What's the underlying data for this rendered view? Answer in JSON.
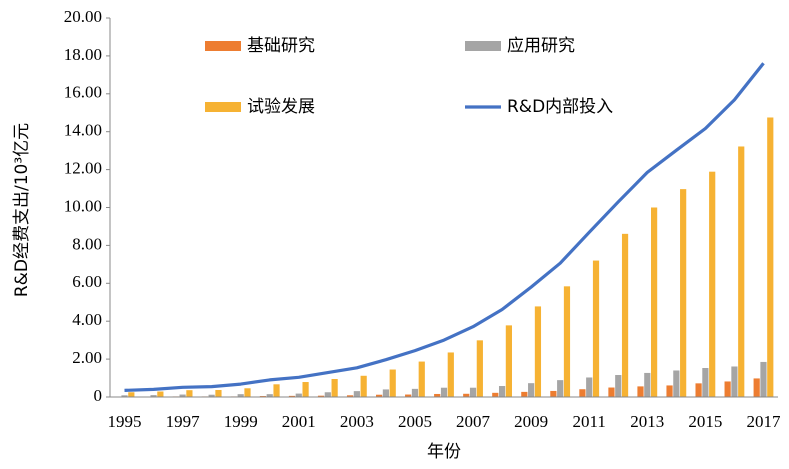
{
  "chart_data": {
    "type": "bar_line",
    "x_label": "年份",
    "y_label": "R&D经费支出/10³亿元",
    "categories": [
      "1995",
      null,
      "1997",
      null,
      "1999",
      null,
      "2001",
      null,
      "2003",
      null,
      "2005",
      null,
      "2007",
      null,
      "2009",
      null,
      "2011",
      null,
      "2013",
      null,
      "2015",
      null,
      "2017"
    ],
    "series": [
      {
        "name": "基础研究",
        "type": "bar",
        "color": "#ed7d31",
        "values": [
          0.02,
          0.02,
          0.03,
          0.03,
          0.03,
          0.05,
          0.06,
          0.07,
          0.09,
          0.12,
          0.13,
          0.16,
          0.17,
          0.22,
          0.27,
          0.32,
          0.41,
          0.5,
          0.56,
          0.61,
          0.72,
          0.82,
          0.98
        ]
      },
      {
        "name": "应用研究",
        "type": "bar",
        "color": "#a5a5a5",
        "values": [
          0.09,
          0.1,
          0.13,
          0.12,
          0.15,
          0.15,
          0.18,
          0.25,
          0.31,
          0.4,
          0.43,
          0.49,
          0.49,
          0.58,
          0.73,
          0.89,
          1.03,
          1.16,
          1.27,
          1.4,
          1.53,
          1.61,
          1.85
        ]
      },
      {
        "name": "试验发展",
        "type": "bar",
        "color": "#f6b233",
        "values": [
          0.25,
          0.29,
          0.36,
          0.37,
          0.46,
          0.67,
          0.79,
          0.95,
          1.12,
          1.45,
          1.87,
          2.35,
          2.99,
          3.78,
          4.78,
          5.84,
          7.2,
          8.61,
          10.0,
          10.97,
          11.89,
          13.22,
          14.75
        ]
      },
      {
        "name": "R&D内部投入",
        "type": "line",
        "color": "#4472c4",
        "values": [
          0.35,
          0.4,
          0.51,
          0.55,
          0.68,
          0.9,
          1.04,
          1.29,
          1.54,
          1.97,
          2.45,
          3.0,
          3.71,
          4.62,
          5.8,
          7.06,
          8.69,
          10.3,
          11.85,
          13.02,
          14.17,
          15.68,
          17.61
        ]
      }
    ],
    "ylim": [
      0,
      20
    ],
    "yticks": [
      0,
      {
        "value": 2,
        "label": "2.00"
      },
      {
        "value": 4,
        "label": "4.00"
      },
      {
        "value": 6,
        "label": "6.00"
      },
      {
        "value": 8,
        "label": "8.00"
      },
      {
        "value": 10,
        "label": "10.00"
      },
      {
        "value": 12,
        "label": "12.00"
      },
      {
        "value": 14,
        "label": "14.00"
      },
      {
        "value": 16,
        "label": "16.00"
      },
      {
        "value": 18,
        "label": "18.00"
      },
      {
        "value": 20,
        "label": "20.00"
      }
    ],
    "grid": false
  }
}
